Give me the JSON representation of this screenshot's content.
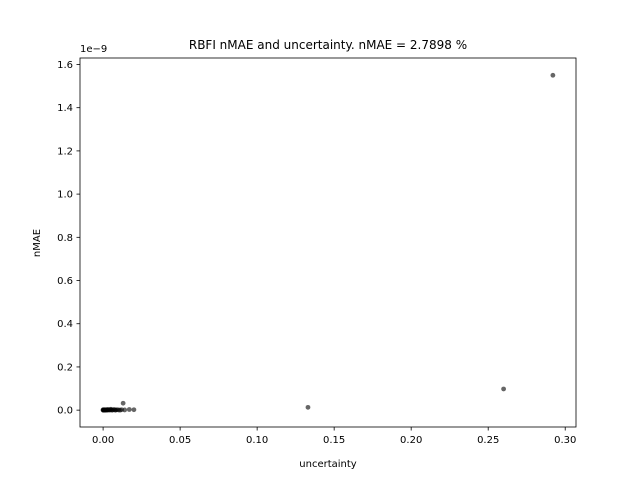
{
  "chart_data": {
    "type": "scatter",
    "title": "RBFI nMAE and uncertainty. nMAE = 2.7898 %",
    "xlabel": "uncertainty",
    "ylabel": "nMAE",
    "y_offset_label": "1e−9",
    "xlim": [
      -0.015,
      0.307
    ],
    "ylim": [
      -0.078,
      1.63
    ],
    "y_unit_exponent": -9,
    "xticks": [
      0.0,
      0.05,
      0.1,
      0.15,
      0.2,
      0.25,
      0.3
    ],
    "xtick_labels": [
      "0.00",
      "0.05",
      "0.10",
      "0.15",
      "0.20",
      "0.25",
      "0.30"
    ],
    "yticks": [
      0.0,
      0.2,
      0.4,
      0.6,
      0.8,
      1.0,
      1.2,
      1.4,
      1.6
    ],
    "ytick_labels": [
      "0.0",
      "0.2",
      "0.4",
      "0.6",
      "0.8",
      "1.0",
      "1.2",
      "1.4",
      "1.6"
    ],
    "grid": false,
    "marker_color": "#000000",
    "marker_alpha": 0.6,
    "points": [
      {
        "x": 0.292,
        "y": 1.55
      },
      {
        "x": 0.26,
        "y": 0.098
      },
      {
        "x": 0.133,
        "y": 0.013
      },
      {
        "x": 0.013,
        "y": 0.032
      },
      {
        "x": 0.02,
        "y": 0.002
      },
      {
        "x": 0.017,
        "y": 0.003
      },
      {
        "x": 0.014,
        "y": 0.001
      },
      {
        "x": 0.012,
        "y": 0.002
      },
      {
        "x": 0.01,
        "y": 0.001
      },
      {
        "x": 0.009,
        "y": 0.002
      },
      {
        "x": 0.008,
        "y": 0.001
      },
      {
        "x": 0.007,
        "y": 0.003
      },
      {
        "x": 0.006,
        "y": 0.001
      },
      {
        "x": 0.005,
        "y": 0.004
      },
      {
        "x": 0.005,
        "y": 0.001
      },
      {
        "x": 0.004,
        "y": 0.002
      },
      {
        "x": 0.004,
        "y": 0.0
      },
      {
        "x": 0.003,
        "y": 0.001
      },
      {
        "x": 0.003,
        "y": 0.003
      },
      {
        "x": 0.002,
        "y": 0.0
      },
      {
        "x": 0.002,
        "y": 0.002
      },
      {
        "x": 0.0015,
        "y": 0.001
      },
      {
        "x": 0.001,
        "y": 0.0
      },
      {
        "x": 0.001,
        "y": 0.002
      },
      {
        "x": 0.0008,
        "y": 0.001
      },
      {
        "x": 0.0005,
        "y": 0.0
      },
      {
        "x": 0.0003,
        "y": 0.001
      },
      {
        "x": 0.0,
        "y": 0.0
      },
      {
        "x": 0.0,
        "y": 0.002
      },
      {
        "x": 0.0002,
        "y": 0.0
      },
      {
        "x": 0.0012,
        "y": 0.0
      },
      {
        "x": 0.0025,
        "y": 0.0
      },
      {
        "x": 0.006,
        "y": 0.0
      },
      {
        "x": 0.008,
        "y": 0.0
      },
      {
        "x": 0.011,
        "y": 0.0
      }
    ]
  }
}
